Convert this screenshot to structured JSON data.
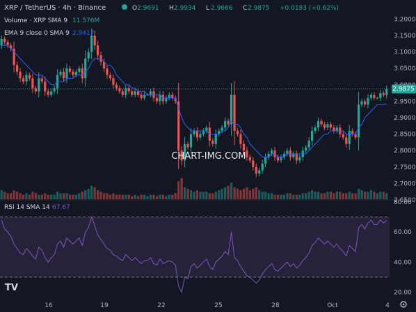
{
  "header": {
    "symbol": "XRP / TetherUS · 4h · Binance",
    "ohlc": [
      {
        "k": "O",
        "v": "2.9691"
      },
      {
        "k": "H",
        "v": "2.9934"
      },
      {
        "k": "L",
        "v": "2.9666"
      },
      {
        "k": "C",
        "v": "2.9875"
      }
    ],
    "change": "+0.0183 (+0.62%)"
  },
  "indicators": {
    "volume_label": "Volume · XRP SMA 9",
    "volume_value": "11.576M",
    "ema_label": "EMA 9 close 0 SMA 9",
    "ema_value": "2.9417",
    "rsi_label": "RSI 14 SMA 14",
    "rsi_value": "67.67"
  },
  "watermark": "CHART-IMG.COM",
  "logo_text": "TV",
  "colors": {
    "background": "#131722",
    "up": "#26a69a",
    "down": "#ef5350",
    "ema": "#2962ff",
    "rsi": "#7e57c2",
    "rsi_band": "#2a2540",
    "text": "#d1d4dc",
    "axis_text": "#b2b5be",
    "price_tag": "#26a69a",
    "green_value": "#26a69a"
  },
  "chart_data": [
    {
      "type": "candlestick",
      "symbol": "XRPUSDT",
      "timeframe": "4h",
      "ylim": [
        2.65,
        3.22
      ],
      "y_ticks": [
        "3.2000",
        "3.1500",
        "3.1000",
        "3.0500",
        "3.0000",
        "2.9500",
        "2.9000",
        "2.8500",
        "2.8000",
        "2.7500",
        "2.7000",
        "2.6500"
      ],
      "x_ticks": [
        "16",
        "19",
        "22",
        "25",
        "28",
        "Oct",
        "4"
      ],
      "last_price": "2.9875",
      "last_price_value": 2.9875,
      "closes": [
        3.14,
        3.13,
        3.12,
        3.11,
        3.06,
        3.04,
        3.02,
        3.01,
        3.03,
        3.02,
        2.99,
        2.98,
        3.02,
        3.01,
        2.98,
        2.97,
        2.98,
        2.99,
        3.03,
        3.04,
        3.02,
        3.05,
        3.04,
        3.03,
        3.04,
        3.05,
        3.02,
        3.08,
        3.1,
        3.15,
        3.12,
        3.09,
        3.07,
        3.05,
        3.03,
        3.02,
        3.0,
        2.99,
        2.98,
        2.97,
        2.99,
        2.98,
        2.97,
        2.98,
        2.97,
        2.96,
        2.97,
        2.97,
        2.98,
        2.96,
        2.95,
        2.97,
        2.95,
        2.96,
        2.97,
        2.96,
        2.95,
        2.8,
        2.77,
        2.82,
        2.81,
        2.85,
        2.86,
        2.84,
        2.85,
        2.86,
        2.87,
        2.83,
        2.82,
        2.85,
        2.86,
        2.87,
        2.89,
        2.88,
        2.97,
        2.86,
        2.85,
        2.82,
        2.8,
        2.78,
        2.77,
        2.75,
        2.73,
        2.74,
        2.76,
        2.78,
        2.79,
        2.8,
        2.78,
        2.77,
        2.78,
        2.79,
        2.8,
        2.78,
        2.79,
        2.77,
        2.78,
        2.8,
        2.81,
        2.83,
        2.86,
        2.87,
        2.89,
        2.88,
        2.87,
        2.88,
        2.87,
        2.86,
        2.87,
        2.85,
        2.84,
        2.82,
        2.86,
        2.85,
        2.84,
        2.94,
        2.95,
        2.94,
        2.96,
        2.97,
        2.96,
        2.96,
        2.975,
        2.969,
        2.9875
      ],
      "ema": [
        3.12,
        3.12,
        3.12,
        3.11,
        3.1,
        3.09,
        3.08,
        3.07,
        3.06,
        3.05,
        3.04,
        3.03,
        3.03,
        3.03,
        3.02,
        3.01,
        3.0,
        3.0,
        3.01,
        3.01,
        3.01,
        3.02,
        3.02,
        3.02,
        3.03,
        3.03,
        3.03,
        3.04,
        3.05,
        3.07,
        3.08,
        3.08,
        3.08,
        3.07,
        3.06,
        3.06,
        3.05,
        3.03,
        3.02,
        3.01,
        3.0,
        3.0,
        2.99,
        2.99,
        2.98,
        2.98,
        2.98,
        2.97,
        2.97,
        2.97,
        2.97,
        2.97,
        2.96,
        2.96,
        2.96,
        2.96,
        2.96,
        2.93,
        2.9,
        2.88,
        2.87,
        2.86,
        2.86,
        2.86,
        2.86,
        2.86,
        2.86,
        2.85,
        2.85,
        2.85,
        2.85,
        2.86,
        2.86,
        2.87,
        2.89,
        2.88,
        2.88,
        2.87,
        2.85,
        2.84,
        2.82,
        2.81,
        2.8,
        2.79,
        2.78,
        2.78,
        2.78,
        2.79,
        2.79,
        2.78,
        2.78,
        2.78,
        2.79,
        2.79,
        2.79,
        2.79,
        2.79,
        2.79,
        2.79,
        2.8,
        2.81,
        2.82,
        2.83,
        2.84,
        2.85,
        2.85,
        2.86,
        2.86,
        2.86,
        2.86,
        2.86,
        2.85,
        2.85,
        2.85,
        2.85,
        2.87,
        2.88,
        2.9,
        2.91,
        2.92,
        2.93,
        2.94,
        2.94,
        2.94,
        2.9417
      ],
      "volume": [
        6,
        5,
        4,
        4,
        6,
        5,
        4,
        3,
        4,
        3,
        5,
        4,
        3,
        3,
        4,
        3,
        3,
        3,
        5,
        4,
        4,
        4,
        3,
        3,
        3,
        4,
        5,
        6,
        7,
        9,
        8,
        6,
        5,
        4,
        4,
        3,
        4,
        3,
        3,
        3,
        3,
        3,
        2,
        3,
        2,
        3,
        3,
        2,
        3,
        3,
        2,
        3,
        3,
        2,
        3,
        3,
        4,
        12,
        14,
        8,
        7,
        6,
        5,
        6,
        5,
        5,
        5,
        4,
        4,
        5,
        6,
        7,
        8,
        9,
        11,
        8,
        7,
        6,
        7,
        8,
        6,
        7,
        8,
        6,
        5,
        5,
        4,
        4,
        3,
        3,
        3,
        3,
        4,
        4,
        3,
        3,
        3,
        4,
        4,
        5,
        6,
        5,
        5,
        4,
        4,
        5,
        5,
        4,
        5,
        5,
        4,
        4,
        5,
        4,
        4,
        7,
        6,
        5,
        5,
        6,
        5,
        4,
        5,
        5,
        4
      ]
    },
    {
      "type": "line",
      "title": "RSI 14 SMA 14",
      "ylim": [
        17,
        80
      ],
      "y_ticks": [
        "80.00",
        "60.00",
        "40.00",
        "20.00"
      ],
      "bands": [
        70,
        30
      ],
      "last_value": "67.67",
      "values": [
        68,
        62,
        60,
        57,
        52,
        49,
        46,
        45,
        49,
        47,
        44,
        42,
        50,
        48,
        43,
        40,
        43,
        45,
        52,
        54,
        50,
        56,
        54,
        52,
        54,
        56,
        51,
        60,
        63,
        70,
        64,
        58,
        55,
        52,
        49,
        48,
        45,
        44,
        42,
        41,
        45,
        43,
        41,
        43,
        41,
        39,
        41,
        41,
        43,
        39,
        38,
        42,
        39,
        40,
        41,
        40,
        38,
        24,
        20,
        30,
        29,
        37,
        39,
        36,
        38,
        40,
        42,
        37,
        35,
        40,
        42,
        44,
        47,
        45,
        60,
        43,
        41,
        37,
        34,
        31,
        30,
        28,
        26,
        28,
        32,
        35,
        37,
        39,
        35,
        34,
        36,
        38,
        40,
        37,
        39,
        36,
        38,
        41,
        43,
        46,
        51,
        53,
        56,
        54,
        52,
        54,
        52,
        50,
        52,
        49,
        47,
        44,
        51,
        49,
        47,
        63,
        65,
        62,
        66,
        68,
        65,
        65,
        68,
        66,
        67.67
      ]
    }
  ]
}
